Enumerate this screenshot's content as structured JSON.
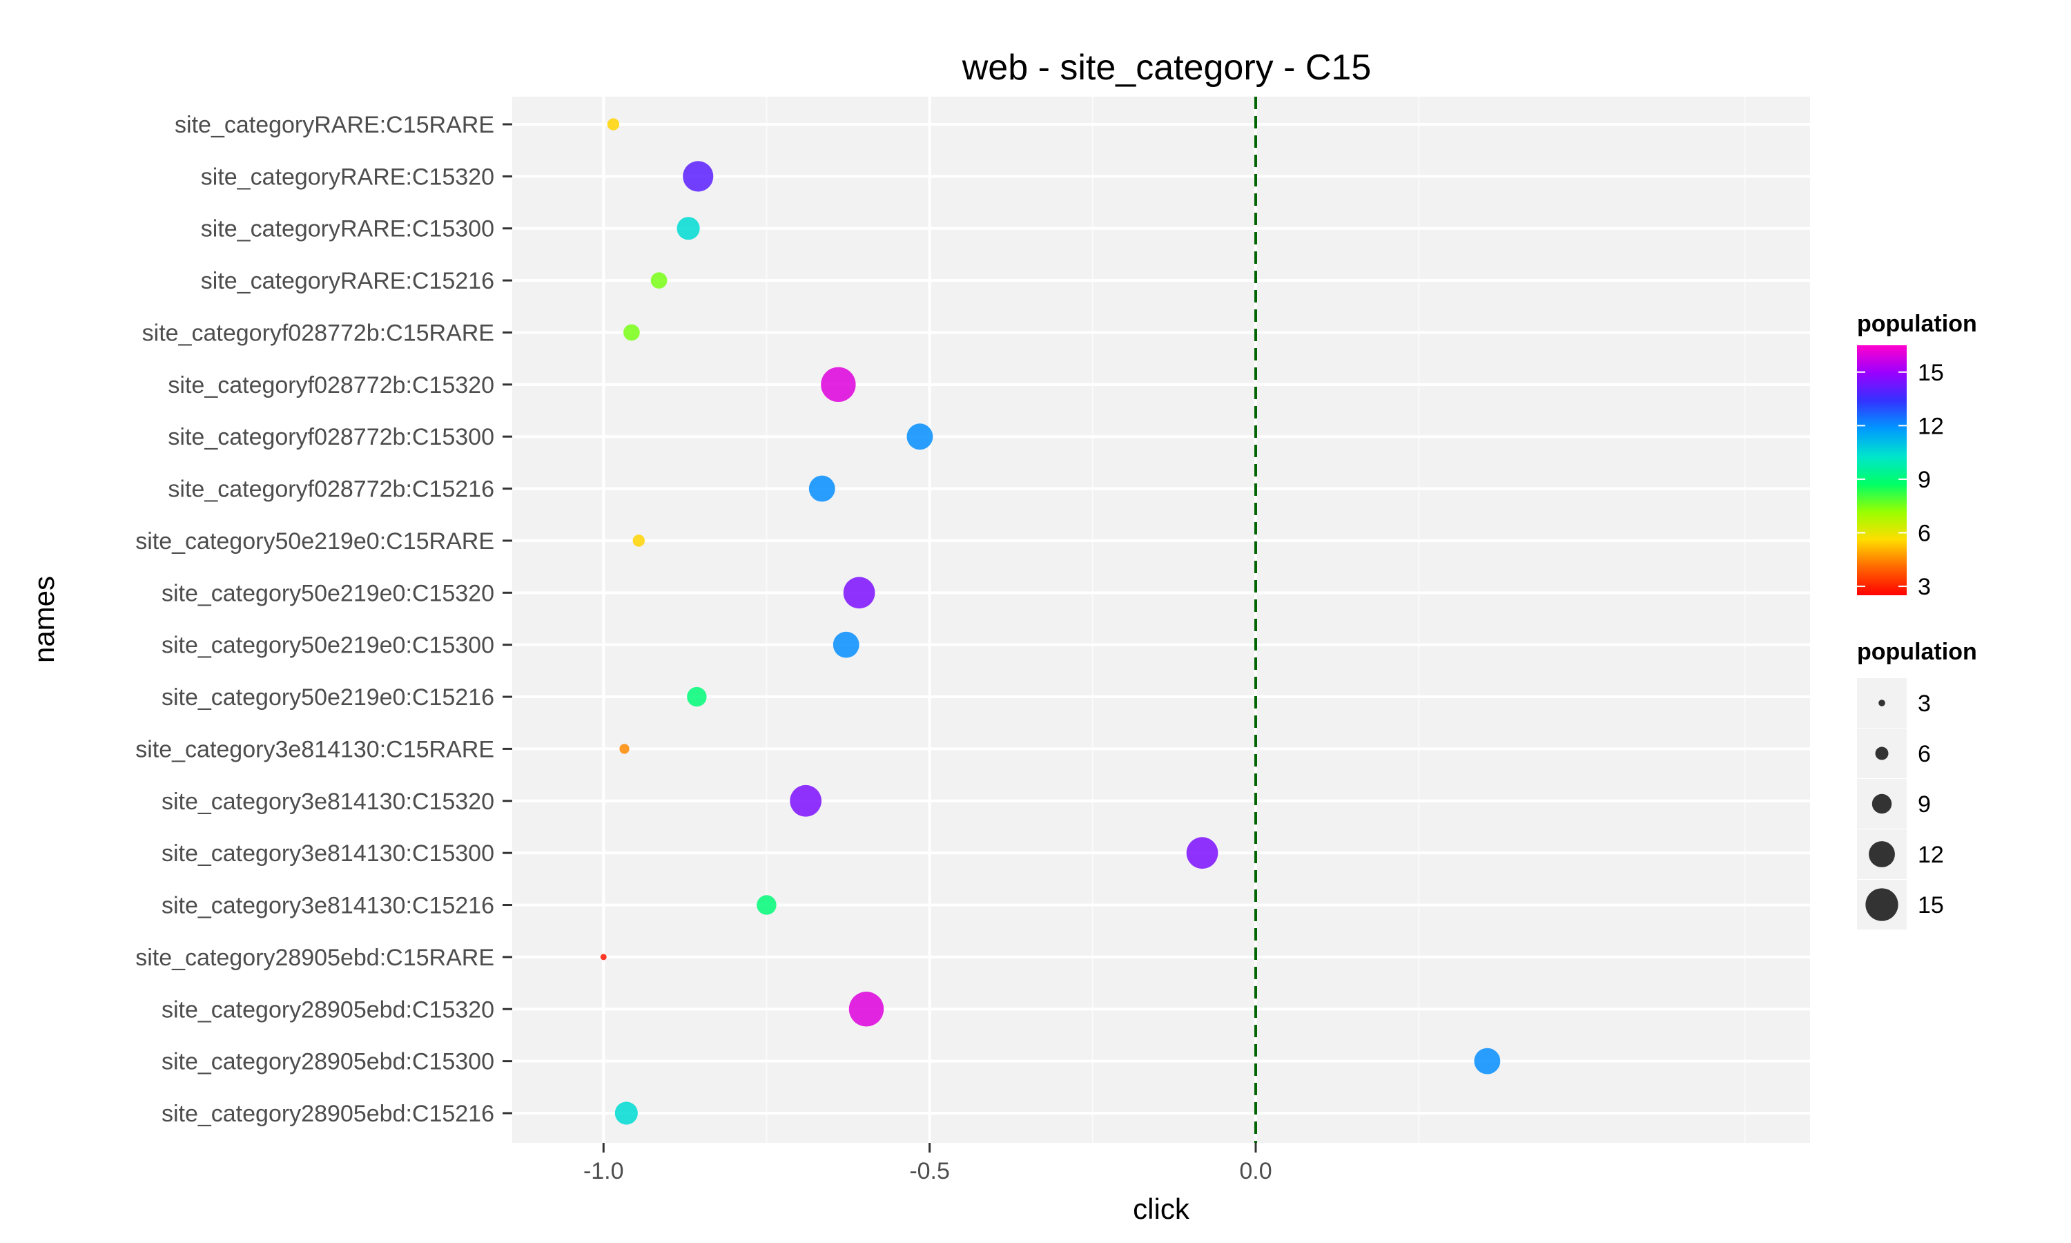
{
  "chart_data": {
    "type": "scatter",
    "title": "web - site_category - C15",
    "xlabel": "click",
    "ylabel": "names",
    "xlim": [
      -1.14,
      0.85
    ],
    "x_ticks": [
      -1.0,
      -0.5,
      0.0
    ],
    "x_tick_labels": [
      "-1.0",
      "-0.5",
      "0.0"
    ],
    "grid": true,
    "reference_line": {
      "x": 0.0,
      "style": "dashed",
      "color": "#006400"
    },
    "categories": [
      "site_categoryRARE:C15RARE",
      "site_categoryRARE:C15320",
      "site_categoryRARE:C15300",
      "site_categoryRARE:C15216",
      "site_categoryf028772b:C15RARE",
      "site_categoryf028772b:C15320",
      "site_categoryf028772b:C15300",
      "site_categoryf028772b:C15216",
      "site_category50e219e0:C15RARE",
      "site_category50e219e0:C15320",
      "site_category50e219e0:C15300",
      "site_category50e219e0:C15216",
      "site_category3e814130:C15RARE",
      "site_category3e814130:C15320",
      "site_category3e814130:C15300",
      "site_category3e814130:C15216",
      "site_category28905ebd:C15RARE",
      "site_category28905ebd:C15320",
      "site_category28905ebd:C15300",
      "site_category28905ebd:C15216"
    ],
    "points": [
      {
        "name": "site_categoryRARE:C15RARE",
        "x": -0.985,
        "population": 5.5
      },
      {
        "name": "site_categoryRARE:C15320",
        "x": -0.855,
        "population": 14
      },
      {
        "name": "site_categoryRARE:C15300",
        "x": -0.87,
        "population": 10.5
      },
      {
        "name": "site_categoryRARE:C15216",
        "x": -0.915,
        "population": 7.5
      },
      {
        "name": "site_categoryf028772b:C15RARE",
        "x": -0.957,
        "population": 7.5
      },
      {
        "name": "site_categoryf028772b:C15320",
        "x": -0.64,
        "population": 16
      },
      {
        "name": "site_categoryf028772b:C15300",
        "x": -0.515,
        "population": 12
      },
      {
        "name": "site_categoryf028772b:C15216",
        "x": -0.665,
        "population": 12
      },
      {
        "name": "site_category50e219e0:C15RARE",
        "x": -0.946,
        "population": 5.5
      },
      {
        "name": "site_category50e219e0:C15320",
        "x": -0.608,
        "population": 14.5
      },
      {
        "name": "site_category50e219e0:C15300",
        "x": -0.628,
        "population": 12
      },
      {
        "name": "site_category50e219e0:C15216",
        "x": -0.857,
        "population": 9
      },
      {
        "name": "site_category3e814130:C15RARE",
        "x": -0.968,
        "population": 4.5
      },
      {
        "name": "site_category3e814130:C15320",
        "x": -0.69,
        "population": 14.5
      },
      {
        "name": "site_category3e814130:C15300",
        "x": -0.082,
        "population": 14.5
      },
      {
        "name": "site_category3e814130:C15216",
        "x": -0.75,
        "population": 9
      },
      {
        "name": "site_category28905ebd:C15RARE",
        "x": -1.0,
        "population": 2.8
      },
      {
        "name": "site_category28905ebd:C15320",
        "x": -0.597,
        "population": 16
      },
      {
        "name": "site_category28905ebd:C15300",
        "x": 0.355,
        "population": 12
      },
      {
        "name": "site_category28905ebd:C15216",
        "x": -0.965,
        "population": 10.5
      }
    ],
    "color_legend": {
      "title": "population",
      "ticks": [
        3,
        6,
        9,
        12,
        15
      ],
      "tick_labels": [
        "3",
        "6",
        "9",
        "12",
        "15"
      ],
      "range": [
        2.5,
        16.5
      ],
      "gradient": [
        "#ff0000",
        "#ff6600",
        "#ffdd00",
        "#99ff00",
        "#00ff66",
        "#00e5cc",
        "#0099ff",
        "#3333ff",
        "#9900ff",
        "#ff00cc"
      ]
    },
    "size_legend": {
      "title": "population",
      "values": [
        3,
        6,
        9,
        12,
        15
      ],
      "labels": [
        "3",
        "6",
        "9",
        "12",
        "15"
      ]
    }
  }
}
